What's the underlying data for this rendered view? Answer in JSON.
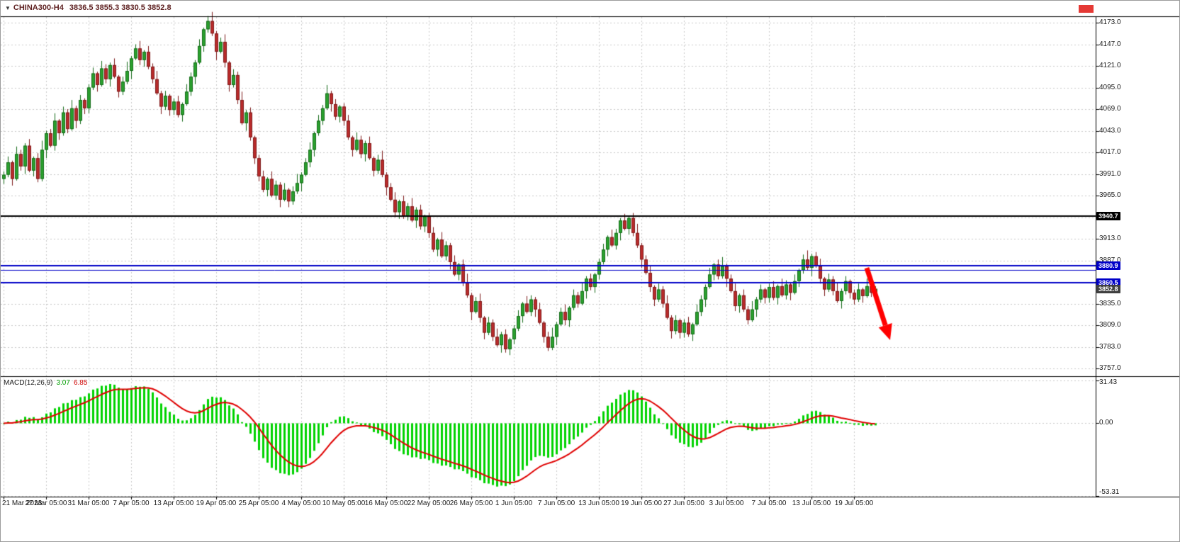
{
  "window": {
    "symbol": "CHINA300-H4",
    "ohlc": "3836.5 3855.3 3830.5 3852.8",
    "dropdown_icon": "▼"
  },
  "price_axis": {
    "tick_labels": [
      {
        "text": "4173.0",
        "price": 4173
      },
      {
        "text": "4147.0",
        "price": 4147
      },
      {
        "text": "4121.0",
        "price": 4121
      },
      {
        "text": "4095.0",
        "price": 4095
      },
      {
        "text": "4069.0",
        "price": 4069
      },
      {
        "text": "4043.0",
        "price": 4043
      },
      {
        "text": "4017.0",
        "price": 4017
      },
      {
        "text": "3991.0",
        "price": 3991
      },
      {
        "text": "3965.0",
        "price": 3965
      },
      {
        "text": "3913.0",
        "price": 3913
      },
      {
        "text": "3887.0",
        "price": 3887
      },
      {
        "text": "3835.0",
        "price": 3835
      },
      {
        "text": "3809.0",
        "price": 3809
      },
      {
        "text": "3783.0",
        "price": 3783
      },
      {
        "text": "3757.0",
        "price": 3757
      }
    ],
    "special_labels": [
      {
        "text": "3940.7",
        "price": 3940.7,
        "bg": "#000000"
      },
      {
        "text": "3880.9",
        "price": 3880.9,
        "bg": "#0000c8"
      },
      {
        "text": "3860.5",
        "price": 3860.5,
        "bg": "#0000c8"
      },
      {
        "text": "3852.8",
        "price": 3852.8,
        "bg": "#3f3f3f"
      }
    ]
  },
  "time_axis": {
    "labels": [
      {
        "text": "21 Mar 2023",
        "bar": 0
      },
      {
        "text": "27 Mar 05:00",
        "bar": 10
      },
      {
        "text": "31 Mar 05:00",
        "bar": 20
      },
      {
        "text": "7 Apr 05:00",
        "bar": 30
      },
      {
        "text": "13 Apr 05:00",
        "bar": 40
      },
      {
        "text": "19 Apr 05:00",
        "bar": 50
      },
      {
        "text": "25 Apr 05:00",
        "bar": 60
      },
      {
        "text": "4 May 05:00",
        "bar": 70
      },
      {
        "text": "10 May 05:00",
        "bar": 80
      },
      {
        "text": "16 May 05:00",
        "bar": 90
      },
      {
        "text": "22 May 05:00",
        "bar": 100
      },
      {
        "text": "26 May 05:00",
        "bar": 110
      },
      {
        "text": "1 Jun 05:00",
        "bar": 120
      },
      {
        "text": "7 Jun 05:00",
        "bar": 130
      },
      {
        "text": "13 Jun 05:00",
        "bar": 140
      },
      {
        "text": "19 Jun 05:00",
        "bar": 150
      },
      {
        "text": "27 Jun 05:00",
        "bar": 160
      },
      {
        "text": "3 Jul 05:00",
        "bar": 170
      },
      {
        "text": "7 Jul 05:00",
        "bar": 180
      },
      {
        "text": "13 Jul 05:00",
        "bar": 190
      },
      {
        "text": "19 Jul 05:00",
        "bar": 200
      }
    ]
  },
  "macd_panel": {
    "title": "MACD(12,26,9)",
    "value_main": "3.07",
    "value_signal": "6.85",
    "scale_labels": [
      {
        "text": "31.43",
        "value": 31.43
      },
      {
        "text": "0.00",
        "value": 0
      },
      {
        "text": "-53.31",
        "value": -53.31
      }
    ]
  },
  "chart_data": {
    "type": "candlestick",
    "symbol": "CHINA300-H4",
    "timeframe": "H4",
    "title": "CHINA300-H4 3836.5 3855.3 3830.5 3852.8",
    "y_axis": {
      "min": 3757,
      "max": 4173,
      "grid_step": 26
    },
    "current_bid": 3852.8,
    "candles": {
      "open_rule": "previous_close",
      "first_open": 3985,
      "close": [
        3990,
        4005,
        3985,
        4015,
        4000,
        4025,
        3995,
        4010,
        3985,
        4020,
        4040,
        4025,
        4055,
        4040,
        4065,
        4045,
        4070,
        4055,
        4080,
        4070,
        4095,
        4112,
        4098,
        4118,
        4105,
        4122,
        4108,
        4090,
        4102,
        4115,
        4130,
        4142,
        4128,
        4138,
        4120,
        4105,
        4088,
        4072,
        4085,
        4068,
        4078,
        4062,
        4075,
        4090,
        4108,
        4125,
        4145,
        4165,
        4175,
        4160,
        4138,
        4150,
        4125,
        4098,
        4110,
        4080,
        4052,
        4065,
        4035,
        4010,
        3988,
        3972,
        3985,
        3965,
        3978,
        3960,
        3972,
        3958,
        3970,
        3980,
        3990,
        4005,
        4020,
        4040,
        4055,
        4070,
        4088,
        4075,
        4060,
        4072,
        4055,
        4035,
        4020,
        4032,
        4015,
        4028,
        4010,
        3995,
        4008,
        3990,
        3975,
        3960,
        3945,
        3958,
        3940,
        3952,
        3935,
        3948,
        3928,
        3940,
        3920,
        3900,
        3912,
        3892,
        3905,
        3885,
        3870,
        3882,
        3860,
        3845,
        3825,
        3838,
        3818,
        3800,
        3812,
        3795,
        3785,
        3798,
        3780,
        3792,
        3805,
        3820,
        3835,
        3825,
        3840,
        3828,
        3812,
        3795,
        3782,
        3795,
        3810,
        3825,
        3815,
        3830,
        3845,
        3835,
        3850,
        3865,
        3855,
        3870,
        3885,
        3900,
        3915,
        3905,
        3920,
        3935,
        3925,
        3938,
        3920,
        3905,
        3888,
        3872,
        3855,
        3840,
        3852,
        3835,
        3818,
        3802,
        3815,
        3800,
        3812,
        3798,
        3810,
        3825,
        3840,
        3855,
        3870,
        3882,
        3868,
        3880,
        3865,
        3850,
        3832,
        3845,
        3828,
        3815,
        3828,
        3840,
        3852,
        3842,
        3855,
        3842,
        3856,
        3845,
        3858,
        3848,
        3862,
        3875,
        3888,
        3878,
        3892,
        3880,
        3865,
        3852,
        3864,
        3850,
        3838,
        3850,
        3862,
        3848,
        3840,
        3852,
        3844,
        3856,
        3848,
        3852.8
      ],
      "wick_up_pattern": [
        4,
        7,
        2,
        9,
        5,
        3,
        8,
        2,
        6,
        11,
        3,
        5,
        9,
        2,
        7,
        4,
        10,
        3,
        6,
        2
      ],
      "wick_down_pattern": [
        6,
        3,
        8,
        2,
        5,
        9,
        2,
        7,
        4,
        3,
        10,
        2,
        6,
        8,
        3,
        5,
        2,
        9,
        4,
        7
      ]
    },
    "hlines": [
      {
        "price": 3940.7,
        "color": "#000000",
        "width": 2
      },
      {
        "price": 3880.9,
        "color": "#0000c8",
        "width": 2
      },
      {
        "price": 3875.5,
        "color": "#0000c8",
        "width": 1
      },
      {
        "price": 3860.5,
        "color": "#0000c8",
        "width": 2
      }
    ],
    "macd": {
      "type": "histogram+signal",
      "fast": 12,
      "slow": 26,
      "signal": 9,
      "current_values": [
        3.07,
        6.85
      ],
      "scale": {
        "min": -53.31,
        "max": 31.43
      },
      "histogram_color": "#00d300",
      "signal_color": "#e00000"
    },
    "arrow_annotation": {
      "direction": "down-right",
      "from_bar": 203,
      "from_price": 3878,
      "to_bar": 208.5,
      "to_price": 3791,
      "color": "#ff0000"
    }
  },
  "colors": {
    "bg": "#ffffff",
    "bull_fill": "#2aa12e",
    "bull_stroke": "#156b19",
    "bear_fill": "#b92b2b",
    "bear_stroke": "#7e1c1c",
    "grid": "#c9c9c9",
    "axis_text": "#1a1a1a",
    "separator": "#000000",
    "blue_level": "#0000c8",
    "top_marker": "#e53935"
  }
}
